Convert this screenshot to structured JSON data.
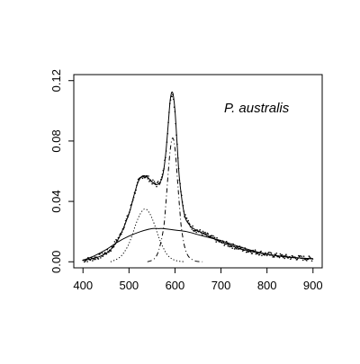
{
  "chart_data": {
    "type": "line",
    "title": "",
    "xlabel": "",
    "ylabel": "",
    "annotation": "P. australis",
    "xlim": [
      400,
      900
    ],
    "ylim": [
      0,
      0.12
    ],
    "x_ticks": [
      400,
      500,
      600,
      700,
      800,
      900
    ],
    "x_tick_labels": [
      "400",
      "500",
      "600",
      "700",
      "800",
      "900"
    ],
    "y_ticks": [
      0.0,
      0.04,
      0.08,
      0.12
    ],
    "y_tick_labels": [
      "0.00",
      "0.04",
      "0.08",
      "0.12"
    ],
    "grid": false,
    "legend": "none",
    "series": [
      {
        "style": "solid",
        "x": [
          400,
          420,
          440,
          460,
          480,
          500,
          510,
          520,
          530,
          540,
          550,
          560,
          570,
          575,
          580,
          585,
          590,
          595,
          600,
          605,
          610,
          620,
          630,
          640,
          660,
          680,
          700,
          720,
          750,
          800,
          850,
          900
        ],
        "y": [
          0.001,
          0.002,
          0.004,
          0.008,
          0.017,
          0.032,
          0.043,
          0.053,
          0.057,
          0.056,
          0.053,
          0.051,
          0.054,
          0.06,
          0.072,
          0.09,
          0.108,
          0.112,
          0.1,
          0.076,
          0.054,
          0.032,
          0.025,
          0.022,
          0.019,
          0.016,
          0.013,
          0.011,
          0.008,
          0.005,
          0.003,
          0.002
        ]
      },
      {
        "style": "solid",
        "x": [
          400,
          425,
          450,
          475,
          500,
          525,
          550,
          565,
          575,
          600,
          625,
          650,
          675,
          700,
          750,
          800,
          850,
          900
        ],
        "y": [
          0.001,
          0.004,
          0.008,
          0.013,
          0.017,
          0.02,
          0.022,
          0.022,
          0.022,
          0.021,
          0.02,
          0.018,
          0.016,
          0.014,
          0.009,
          0.005,
          0.003,
          0.002
        ]
      },
      {
        "style": "dotted",
        "x": [
          460,
          480,
          495,
          505,
          515,
          525,
          535,
          545,
          555,
          565,
          575,
          585,
          600,
          620
        ],
        "y": [
          0.0,
          0.003,
          0.009,
          0.016,
          0.025,
          0.032,
          0.035,
          0.032,
          0.025,
          0.016,
          0.009,
          0.004,
          0.001,
          0.0
        ]
      },
      {
        "style": "dashed",
        "x": [
          540,
          555,
          565,
          575,
          580,
          585,
          590,
          595,
          600,
          605,
          610,
          615,
          625,
          640,
          660
        ],
        "y": [
          0.0,
          0.002,
          0.008,
          0.022,
          0.038,
          0.058,
          0.075,
          0.082,
          0.075,
          0.056,
          0.036,
          0.02,
          0.006,
          0.001,
          0.0
        ]
      }
    ]
  }
}
